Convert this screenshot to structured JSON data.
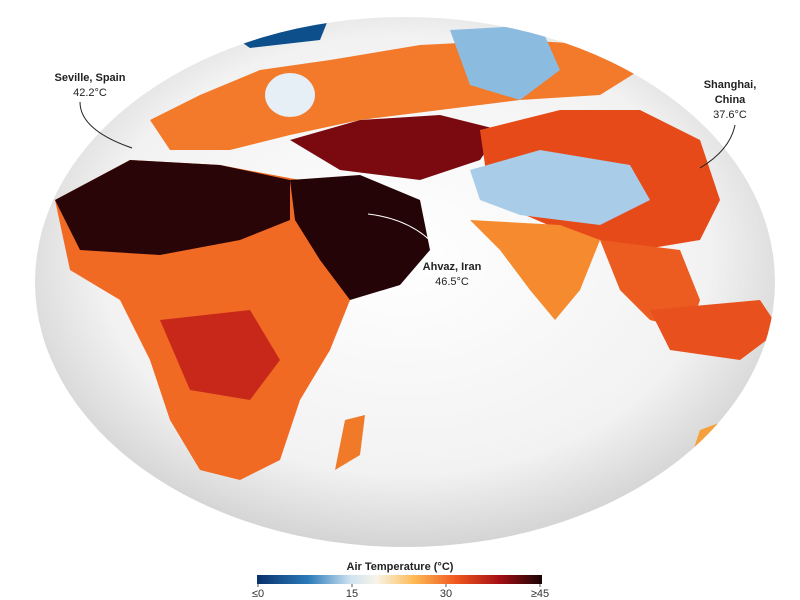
{
  "annotations": [
    {
      "place": "Seville, Spain",
      "temperature": "42.2°C"
    },
    {
      "place": "Shanghai,",
      "place_line2": "China",
      "temperature": "37.6°C"
    },
    {
      "place": "Ahvaz, Iran",
      "temperature": "46.5°C"
    }
  ],
  "legend": {
    "title": "Air Temperature (°C)",
    "range": [
      0,
      45
    ],
    "ticks": [
      {
        "value": 0,
        "label": "≤0"
      },
      15,
      30,
      {
        "value": 45,
        "label": "≥45"
      }
    ]
  }
}
